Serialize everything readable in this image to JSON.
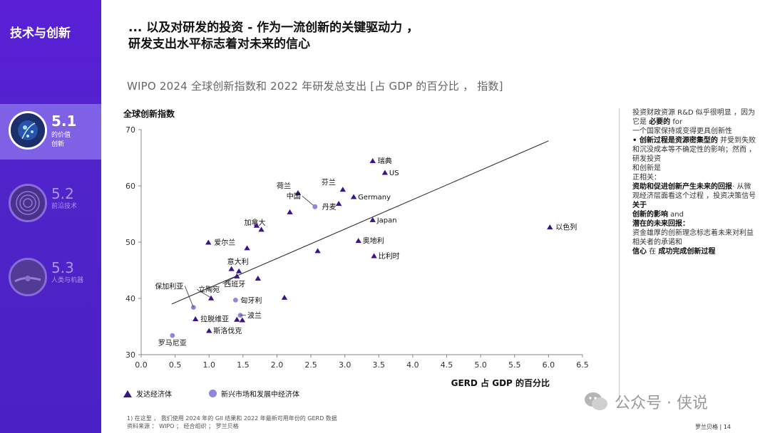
{
  "sidebar": {
    "title": "技术与创新",
    "items": [
      {
        "num": "5.1",
        "sub1": "的价值",
        "sub2": "创新"
      },
      {
        "num": "5.2",
        "sub1": "前沿技术",
        "sub2": ""
      },
      {
        "num": "5.3",
        "sub1": "人类与机器",
        "sub2": ""
      }
    ]
  },
  "header": {
    "line1": "... 以及对研发的投资 - 作为一流创新的关键驱动力 ，",
    "line2": "研发支出水平标志着对未来的信心"
  },
  "chart_title": "WIPO 2024 全球创新指数和 2022 年研发总支出 [占 GDP 的百分比 ， 指数]",
  "chart_data": {
    "type": "scatter",
    "title": "WIPO 2024 全球创新指数和 2022 年研发总支出 [占 GDP 的百分比 ， 指数]",
    "xlabel": "GERD 占 GDP 的百分比",
    "ylabel": "全球创新指数",
    "xlim": [
      0.0,
      6.5
    ],
    "ylim": [
      30,
      70
    ],
    "x_ticks": [
      "0.0",
      "0.5",
      "1.0",
      "1.5",
      "2.0",
      "2.5",
      "3.0",
      "3.5",
      "4.0",
      "4.5",
      "5.0",
      "5.5",
      "6.0",
      "6.5"
    ],
    "y_ticks": [
      "30",
      "40",
      "50",
      "60",
      "70"
    ],
    "trendline": {
      "x": [
        0.45,
        6.0
      ],
      "y": [
        39.0,
        68.0
      ]
    },
    "series": [
      {
        "name": "发达经济体",
        "color": "#3b138f",
        "marker": "triangle",
        "points": [
          {
            "x": 3.41,
            "y": 64.5,
            "label": "瑞典"
          },
          {
            "x": 3.59,
            "y": 62.4,
            "label": "US"
          },
          {
            "x": 2.97,
            "y": 59.4,
            "label": "芬兰"
          },
          {
            "x": 2.31,
            "y": 58.8,
            "label": "荷兰"
          },
          {
            "x": 3.13,
            "y": 58.1,
            "label": "Germany"
          },
          {
            "x": 2.91,
            "y": 56.9,
            "label": ""
          },
          {
            "x": 2.19,
            "y": 55.4,
            "label": ""
          },
          {
            "x": 3.41,
            "y": 54.0,
            "label": "Japan"
          },
          {
            "x": 1.77,
            "y": 52.3,
            "label": "加拿大"
          },
          {
            "x": 1.7,
            "y": 53.0,
            "label": ""
          },
          {
            "x": 6.02,
            "y": 52.7,
            "label": "以色列"
          },
          {
            "x": 0.99,
            "y": 50.0,
            "label": "爱尔兰"
          },
          {
            "x": 3.2,
            "y": 50.3,
            "label": "奥地利"
          },
          {
            "x": 1.56,
            "y": 49.0,
            "label": ""
          },
          {
            "x": 2.6,
            "y": 48.5,
            "label": ""
          },
          {
            "x": 3.43,
            "y": 47.6,
            "label": "比利时"
          },
          {
            "x": 1.33,
            "y": 45.3,
            "label": "意大利"
          },
          {
            "x": 1.44,
            "y": 44.9,
            "label": ""
          },
          {
            "x": 1.41,
            "y": 44.0,
            "label": "西班牙"
          },
          {
            "x": 1.72,
            "y": 43.6,
            "label": ""
          },
          {
            "x": 1.03,
            "y": 40.1,
            "label": "立陶宛"
          },
          {
            "x": 2.11,
            "y": 40.2,
            "label": ""
          },
          {
            "x": 0.8,
            "y": 36.4,
            "label": "拉脱维亚"
          },
          {
            "x": 1.41,
            "y": 36.3,
            "label": ""
          },
          {
            "x": 1.49,
            "y": 36.2,
            "label": ""
          },
          {
            "x": 1.0,
            "y": 34.3,
            "label": "斯洛伐克"
          }
        ]
      },
      {
        "name": "新兴市场和发展中经济体",
        "color": "#8e86e0",
        "marker": "circle",
        "points": [
          {
            "x": 2.56,
            "y": 56.3,
            "label": "中国"
          },
          {
            "x": 2.56,
            "y": 56.3,
            "label": "丹麦"
          },
          {
            "x": 1.39,
            "y": 39.7,
            "label": "匈牙利"
          },
          {
            "x": 0.77,
            "y": 38.4,
            "label": "保加利亚"
          },
          {
            "x": 1.46,
            "y": 37.0,
            "label": "波兰"
          },
          {
            "x": 0.46,
            "y": 33.4,
            "label": "罗马尼亚"
          }
        ]
      }
    ]
  },
  "right_text": {
    "p1a": "投资财政资源  R&D  似乎很明显 ，因为它是 ",
    "p1b": "必要的",
    "p1c": " for",
    "p2": "一个国家保持或变得更具创新性",
    "p3a": "• 创新过程是资源密集型的",
    "p3b": " 并受到失败和沉没成本等不确定性的影响；然而 ，研发投资",
    "p4": "和创新是",
    "p5": "正相关：",
    "p6a": "资助和促进创新产生未来的回报",
    "p6b": "· 从微观经济层面看这个过程 ，投资决策信号",
    "p7a": "关于",
    "p7b": "创新的影响",
    "p7c": " and",
    "p8a": "潜在的未来回报：",
    "p8b": "资金雄厚的创新理念标志着未来对利益相关者的承诺和",
    "p9a": "信心",
    "p9b": " 在 ",
    "p9c": "成功完成创新过程"
  },
  "footnote": {
    "line1": "1) 在这里 ， 我们使用 2024 年的 GII 结果和 2022 年最新可用年份的 GERD 数据",
    "line2": "资料来源 ： WIPO ； 经合组织 ； 罗兰贝格"
  },
  "watermark": "公众号 · 侠说",
  "page_label": "罗兰贝格 | 14"
}
